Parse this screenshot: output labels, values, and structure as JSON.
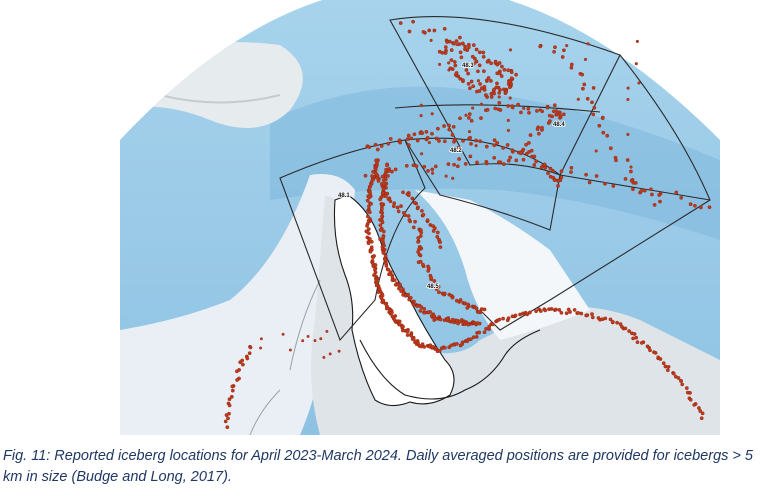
{
  "figure": {
    "caption": "Fig. 11: Reported iceberg locations for April 2023-March 2024. Daily averaged positions are provided for icebergs > 5 km in size (Budge and Long, 2017).",
    "area_labels": [
      "48.1",
      "48.2",
      "48.3",
      "48.4",
      "48.5"
    ],
    "colors": {
      "ocean": "#aed7ee",
      "deep_ocean": "#7fb8dc",
      "ice_shelf": "#eef3f7",
      "land": "#d2d6d9",
      "iceberg": "#c0391b",
      "boundary": "#222222"
    },
    "legend": []
  }
}
